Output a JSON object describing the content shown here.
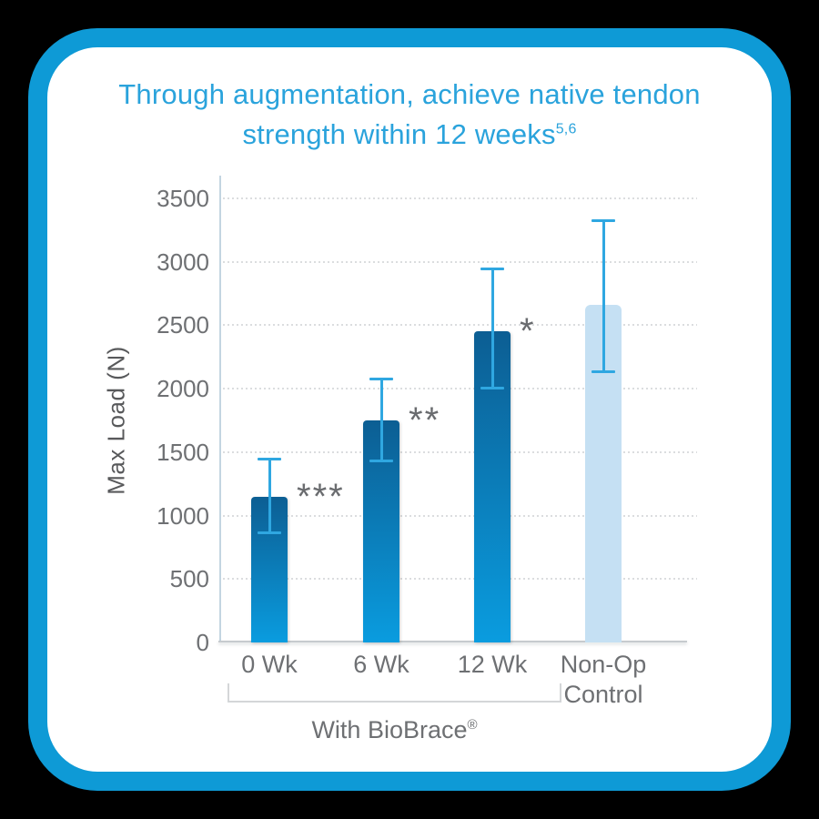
{
  "card": {
    "border_color": "#0E9AD6",
    "background": "#FFFFFF"
  },
  "title": {
    "text_line1": "Through augmentation, achieve native tendon",
    "text_line2": "strength within 12 weeks",
    "superscript": "5,6",
    "color": "#2AA3DC"
  },
  "chart_data": {
    "type": "bar",
    "title": "Through augmentation, achieve native tendon strength within 12 weeks",
    "title_reference_marks": "5,6",
    "ylabel": "Max Load (N)",
    "xlabel": "",
    "categories": [
      "0 Wk",
      "6 Wk",
      "12 Wk",
      "Non-Op Control"
    ],
    "values": [
      1150,
      1750,
      2450,
      2660
    ],
    "error_bars": {
      "low": [
        860,
        1430,
        2000,
        2130
      ],
      "high": [
        1450,
        2080,
        2950,
        3330
      ]
    },
    "significance_labels": [
      "***",
      "**",
      "*",
      ""
    ],
    "group_annotation": {
      "label": "With BioBrace",
      "registered_mark": "®",
      "applies_to": [
        "0 Wk",
        "6 Wk",
        "12 Wk"
      ]
    },
    "ylim": [
      0,
      3500
    ],
    "yticks": [
      0,
      500,
      1000,
      1500,
      2000,
      2500,
      3000,
      3500
    ],
    "grid": "horizontal-dotted",
    "legend": "none",
    "colors": {
      "bar_gradient_top": "#0C5E93",
      "bar_gradient_bottom": "#0A9CDF",
      "control_bar": "#C5E0F3",
      "error_bar": "#2FA7E1",
      "axis_text": "#6E7073",
      "ylabel_text": "#58595B",
      "gridline": "#DBDDDF",
      "y_axis_line": "#C3D5E1",
      "x_axis_line": "#C6CBCE",
      "significance": "#6A6C6F",
      "bracket": "#D4D6D8"
    }
  }
}
